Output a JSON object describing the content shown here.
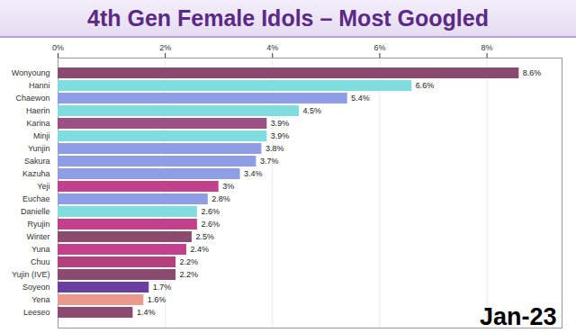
{
  "chart_data": {
    "type": "bar",
    "title": "4th Gen Female Idols – Most Googled",
    "orientation": "horizontal",
    "categories": [
      "Wonyoung",
      "Hanni",
      "Chaewon",
      "Haerin",
      "Karina",
      "Minji",
      "Yunjin",
      "Sakura",
      "Kazuha",
      "Yeji",
      "Euchae",
      "Danielle",
      "Ryujin",
      "Winter",
      "Yuna",
      "Chuu",
      "Yujin (IVE)",
      "Soyeon",
      "Yena",
      "Leeseo"
    ],
    "values": [
      8.6,
      6.6,
      5.4,
      4.5,
      3.9,
      3.9,
      3.8,
      3.7,
      3.4,
      3,
      2.8,
      2.6,
      2.6,
      2.5,
      2.4,
      2.2,
      2.2,
      1.7,
      1.6,
      1.4
    ],
    "value_labels": [
      "8.6%",
      "6.6%",
      "5.4%",
      "4.5%",
      "3.9%",
      "3.9%",
      "3.8%",
      "3.7%",
      "3.4%",
      "3%",
      "2.8%",
      "2.6%",
      "2.6%",
      "2.5%",
      "2.4%",
      "2.2%",
      "2.2%",
      "1.7%",
      "1.6%",
      "1.4%"
    ],
    "colors": [
      "#8b4a6e",
      "#7fdde0",
      "#8e9de6",
      "#7fdde0",
      "#9c4f82",
      "#7fdde0",
      "#8e9de6",
      "#8e9de6",
      "#8e9de6",
      "#c2408c",
      "#8e9de6",
      "#7fdde0",
      "#c2408c",
      "#8b4a6e",
      "#c2408c",
      "#b5407e",
      "#8b4a6e",
      "#6b3fa0",
      "#e89a8c",
      "#8b4a6e"
    ],
    "xlim": [
      0,
      9.4
    ],
    "xticks": [
      {
        "value": 0,
        "label": "0%"
      },
      {
        "value": 2,
        "label": "2%"
      },
      {
        "value": 4,
        "label": "4%"
      },
      {
        "value": 6,
        "label": "6%"
      },
      {
        "value": 8,
        "label": "8%"
      }
    ],
    "grid": true,
    "data_labels": true,
    "annotations": [
      "Jan-23"
    ]
  }
}
